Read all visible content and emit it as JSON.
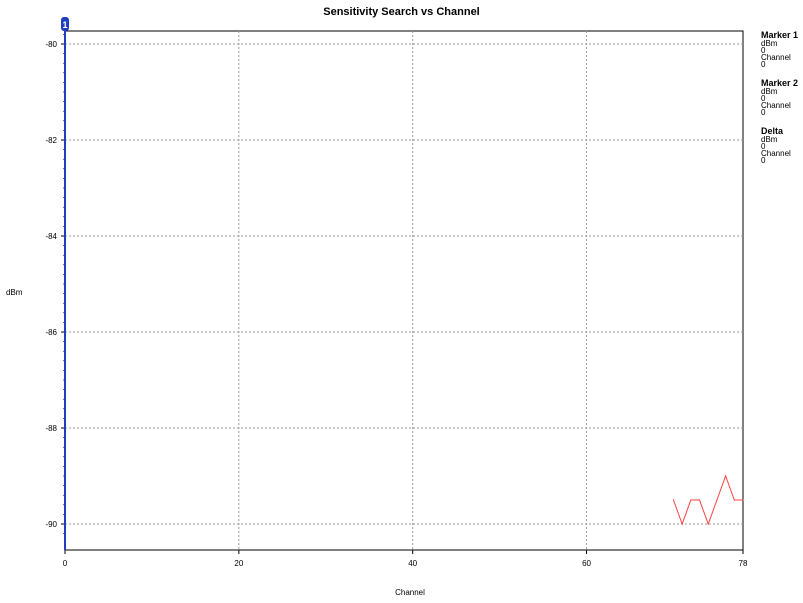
{
  "chart_data": {
    "type": "line",
    "title": "Sensitivity Search vs Channel",
    "xlabel": "Channel",
    "ylabel": "dBm",
    "xlim": [
      0,
      78
    ],
    "ylim": [
      -90.5,
      -79.75
    ],
    "y_reversed": true,
    "x_ticks": [
      0,
      20,
      40,
      60,
      78
    ],
    "y_ticks": [
      -80,
      -82,
      -84,
      -86,
      -88,
      -90
    ],
    "y_tick_labels": [
      "-80",
      "-82",
      "-84",
      "-86",
      "-88",
      "-90"
    ],
    "grid": true,
    "series": [
      {
        "color": "#ff4040",
        "x": [
          70,
          71,
          72,
          73,
          74,
          75,
          76,
          77,
          78
        ],
        "y": [
          -89.5,
          -90.0,
          -89.5,
          -89.5,
          -90.0,
          -89.5,
          -89.0,
          -89.5,
          -89.5
        ]
      }
    ],
    "marker": {
      "label": "1",
      "x": 0,
      "color": "#1f3fbf"
    },
    "legend": [
      {
        "heading": "Marker 1",
        "unit_label": "dBm",
        "unit_value": "0",
        "axis_label": "Channel",
        "axis_value": "0"
      },
      {
        "heading": "Marker 2",
        "unit_label": "dBm",
        "unit_value": "0",
        "axis_label": "Channel",
        "axis_value": "0"
      },
      {
        "heading": "Delta",
        "unit_label": "dBm",
        "unit_value": "0",
        "axis_label": "Channel",
        "axis_value": "0"
      }
    ]
  }
}
